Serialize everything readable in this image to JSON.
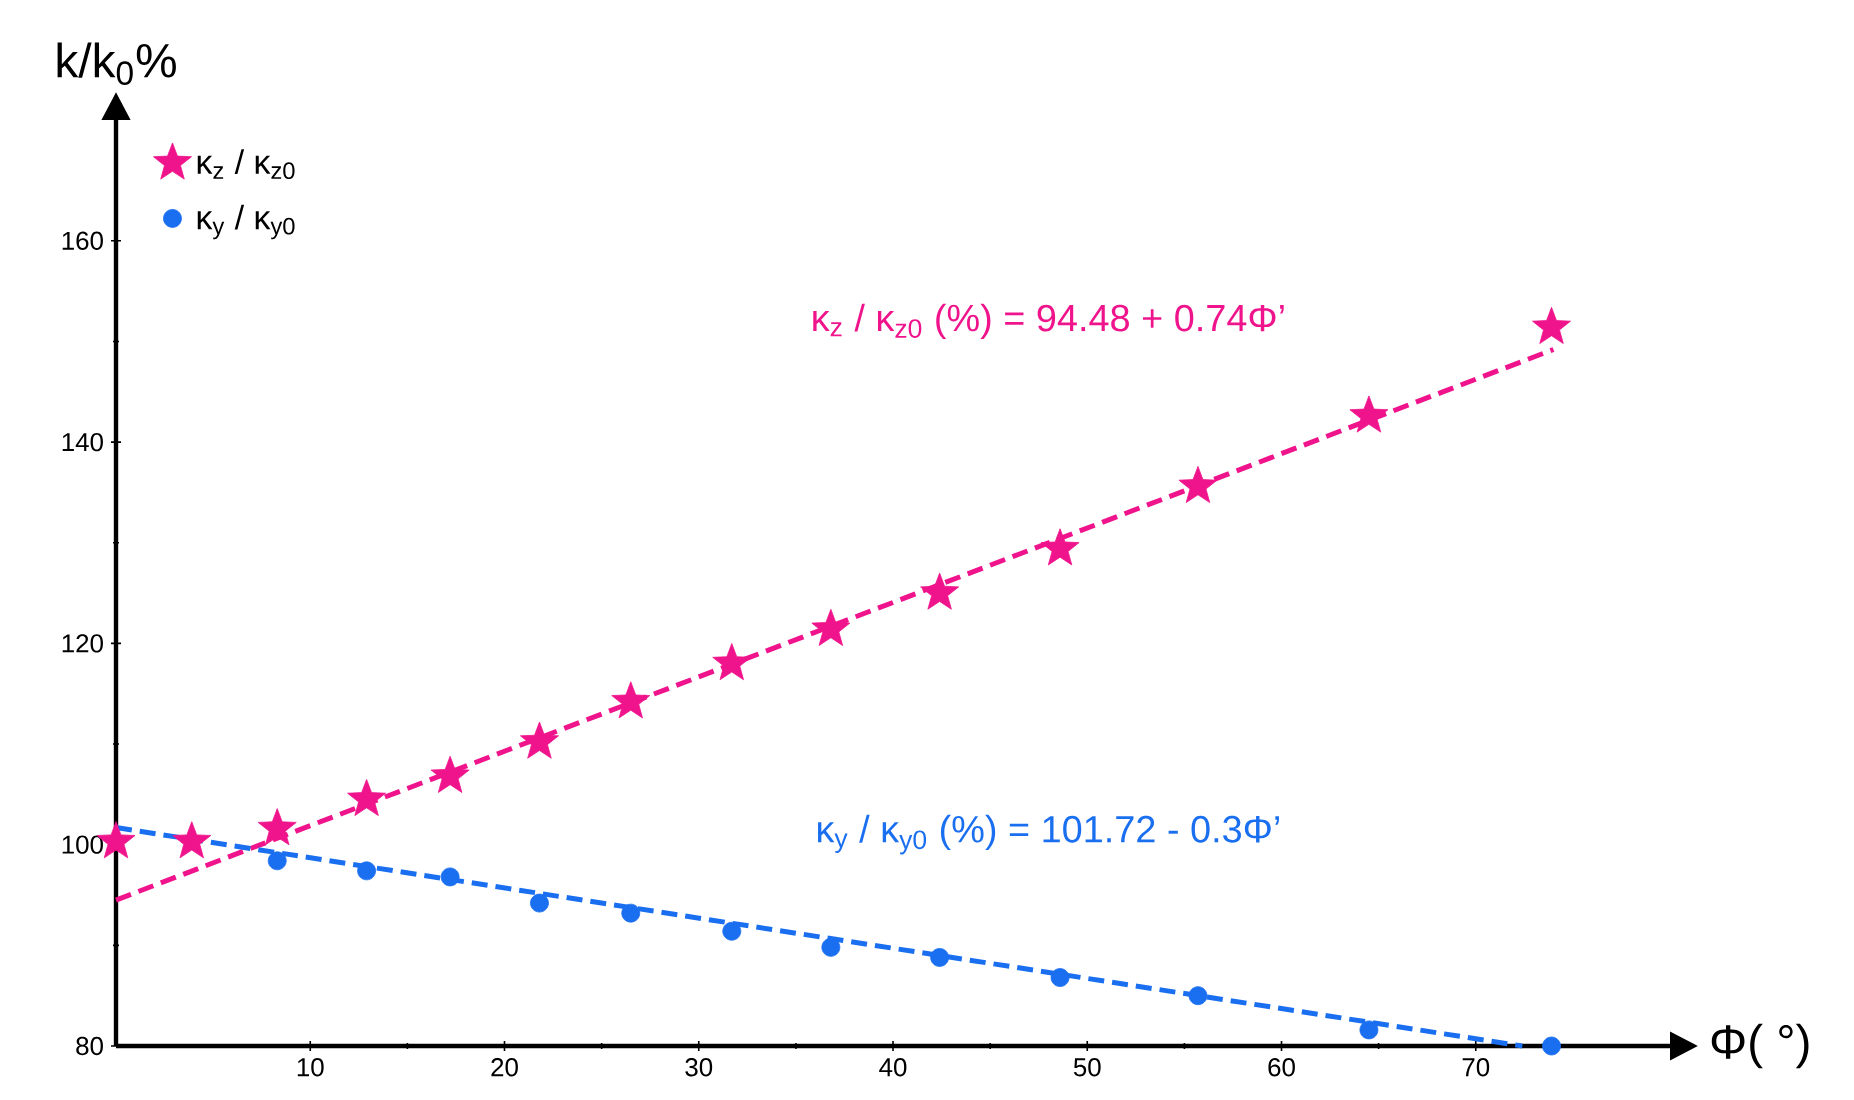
{
  "chart_data": {
    "type": "scatter",
    "xlabel": "Φ( °)",
    "ylabel": "k/k$_{0}$%",
    "xlim": [
      0,
      80
    ],
    "ylim": [
      80,
      172
    ],
    "xticks": [
      10,
      20,
      30,
      40,
      50,
      60,
      70
    ],
    "yticks": [
      80,
      100,
      120,
      140,
      160
    ],
    "legend": "top left",
    "annotations": [
      "κ$_{z}$ / κ$_{z0}$ (%) = 94.48 + 0.74Φ’",
      "κ$_{y}$ / κ$_{y0}$ (%) = 101.72 - 0.3Φ’"
    ],
    "series": [
      {
        "name": "κ$_{z}$ / κ$_{z0}$",
        "color": "#f0148c",
        "marker": "star",
        "x": [
          0,
          3.9,
          8.3,
          12.9,
          17.2,
          21.8,
          26.5,
          31.7,
          36.8,
          42.4,
          48.6,
          55.7,
          64.5,
          73.9
        ],
        "values": [
          100.3,
          100.3,
          101.6,
          104.5,
          106.8,
          110.2,
          114.2,
          118,
          121.4,
          125,
          129.4,
          135.6,
          142.6,
          151.4
        ]
      },
      {
        "name": "κ$_{y}$ / κ$_{y0}$",
        "color": "#1a6ff0",
        "marker": "circle",
        "x": [
          8.3,
          12.9,
          17.2,
          21.8,
          26.5,
          31.7,
          36.8,
          42.4,
          48.6,
          55.7,
          64.5,
          73.9
        ],
        "values": [
          98.4,
          97.4,
          96.8,
          94.2,
          93.2,
          91.4,
          89.8,
          88.8,
          86.8,
          85,
          81.6,
          80
        ]
      },
      {
        "type": "line",
        "color": "#f0148c",
        "line_style": "dashed",
        "x": [
          0,
          74
        ],
        "values": [
          94.5,
          149.2
        ]
      },
      {
        "type": "line",
        "color": "#1a6ff0",
        "line_style": "dashed",
        "x": [
          0,
          72.4
        ],
        "values": [
          101.7,
          80.0
        ]
      }
    ]
  }
}
